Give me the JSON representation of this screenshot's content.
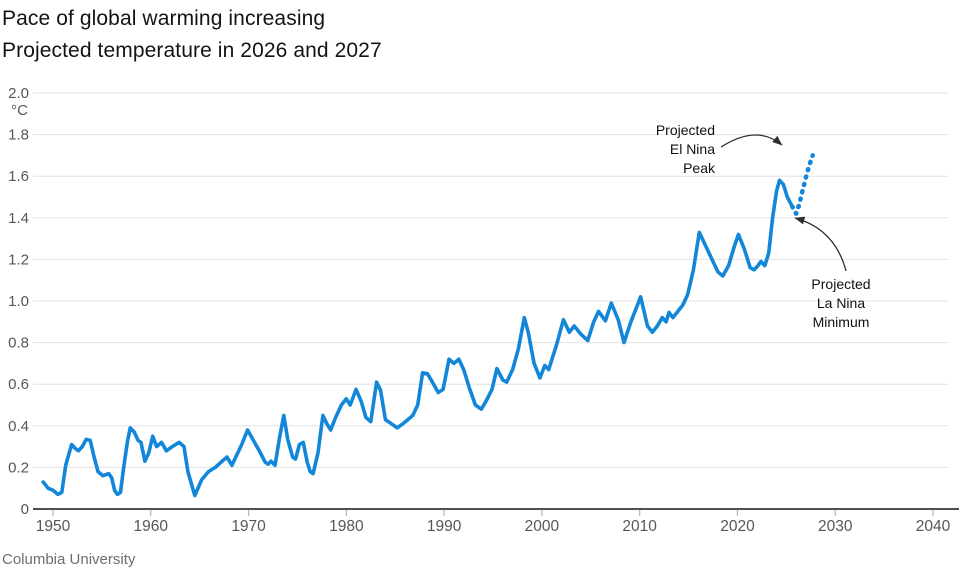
{
  "source": "Columbia University",
  "colors": {
    "line": "#1287d9",
    "grid": "#e3e3e3",
    "axis": "#4f4f4f",
    "tick": "#b3b3b3",
    "tick_label": "#575757",
    "annotation": "#111111",
    "arrow": "#2e2e2e"
  },
  "chart_data": {
    "type": "line",
    "title": "Pace of global warming increasing",
    "subtitle": "Projected temperature in 2026 and 2027",
    "unit_label": "°C",
    "xlim": [
      1948,
      2041
    ],
    "ylim": [
      0,
      2.0
    ],
    "grid": true,
    "legend": "none",
    "x_ticks": [
      1950,
      1960,
      1970,
      1980,
      1990,
      2000,
      2010,
      2020,
      2030,
      2040
    ],
    "y_ticks": [
      [
        "0",
        0
      ],
      [
        "0.2",
        0.2
      ],
      [
        "0.4",
        0.4
      ],
      [
        "0.6",
        0.6
      ],
      [
        "0.8",
        0.8
      ],
      [
        "1.0",
        1.0
      ],
      [
        "1.2",
        1.2
      ],
      [
        "1.4",
        1.4
      ],
      [
        "1.6",
        1.6
      ],
      [
        "1.8",
        1.8
      ],
      [
        "2.0",
        2.0
      ]
    ],
    "series": [
      {
        "name": "observed-temperature",
        "style": "solid",
        "points": [
          [
            1949.0,
            0.13
          ],
          [
            1949.5,
            0.1
          ],
          [
            1950.0,
            0.09
          ],
          [
            1950.5,
            0.07
          ],
          [
            1950.9,
            0.08
          ],
          [
            1951.3,
            0.21
          ],
          [
            1951.9,
            0.31
          ],
          [
            1952.3,
            0.29
          ],
          [
            1952.6,
            0.28
          ],
          [
            1953.0,
            0.3
          ],
          [
            1953.4,
            0.335
          ],
          [
            1953.8,
            0.33
          ],
          [
            1954.2,
            0.25
          ],
          [
            1954.6,
            0.18
          ],
          [
            1955.1,
            0.16
          ],
          [
            1955.7,
            0.17
          ],
          [
            1956.0,
            0.15
          ],
          [
            1956.3,
            0.09
          ],
          [
            1956.6,
            0.07
          ],
          [
            1956.9,
            0.08
          ],
          [
            1957.2,
            0.19
          ],
          [
            1957.6,
            0.32
          ],
          [
            1957.9,
            0.39
          ],
          [
            1958.3,
            0.37
          ],
          [
            1958.7,
            0.33
          ],
          [
            1959.0,
            0.32
          ],
          [
            1959.4,
            0.23
          ],
          [
            1959.8,
            0.27
          ],
          [
            1960.2,
            0.35
          ],
          [
            1960.6,
            0.3
          ],
          [
            1961.1,
            0.32
          ],
          [
            1961.6,
            0.28
          ],
          [
            1962.2,
            0.3
          ],
          [
            1962.9,
            0.32
          ],
          [
            1963.4,
            0.3
          ],
          [
            1963.8,
            0.18
          ],
          [
            1964.5,
            0.065
          ],
          [
            1965.2,
            0.14
          ],
          [
            1965.9,
            0.18
          ],
          [
            1966.6,
            0.2
          ],
          [
            1967.3,
            0.23
          ],
          [
            1967.8,
            0.25
          ],
          [
            1968.3,
            0.21
          ],
          [
            1968.8,
            0.26
          ],
          [
            1969.3,
            0.31
          ],
          [
            1969.9,
            0.38
          ],
          [
            1970.5,
            0.33
          ],
          [
            1971.1,
            0.28
          ],
          [
            1971.7,
            0.225
          ],
          [
            1972.0,
            0.215
          ],
          [
            1972.3,
            0.23
          ],
          [
            1972.7,
            0.21
          ],
          [
            1973.2,
            0.35
          ],
          [
            1973.6,
            0.45
          ],
          [
            1974.0,
            0.335
          ],
          [
            1974.5,
            0.25
          ],
          [
            1974.8,
            0.24
          ],
          [
            1975.2,
            0.31
          ],
          [
            1975.6,
            0.32
          ],
          [
            1976.0,
            0.225
          ],
          [
            1976.3,
            0.18
          ],
          [
            1976.6,
            0.17
          ],
          [
            1977.1,
            0.27
          ],
          [
            1977.6,
            0.45
          ],
          [
            1978.0,
            0.41
          ],
          [
            1978.4,
            0.38
          ],
          [
            1978.9,
            0.44
          ],
          [
            1979.5,
            0.5
          ],
          [
            1980.0,
            0.53
          ],
          [
            1980.4,
            0.5
          ],
          [
            1981.0,
            0.575
          ],
          [
            1981.5,
            0.52
          ],
          [
            1982.0,
            0.44
          ],
          [
            1982.5,
            0.42
          ],
          [
            1983.1,
            0.61
          ],
          [
            1983.5,
            0.57
          ],
          [
            1984.0,
            0.43
          ],
          [
            1984.6,
            0.41
          ],
          [
            1985.2,
            0.39
          ],
          [
            1985.8,
            0.41
          ],
          [
            1986.3,
            0.43
          ],
          [
            1986.8,
            0.45
          ],
          [
            1987.3,
            0.5
          ],
          [
            1987.8,
            0.655
          ],
          [
            1988.3,
            0.65
          ],
          [
            1988.8,
            0.61
          ],
          [
            1989.4,
            0.56
          ],
          [
            1989.9,
            0.575
          ],
          [
            1990.5,
            0.72
          ],
          [
            1991.0,
            0.7
          ],
          [
            1991.5,
            0.72
          ],
          [
            1992.0,
            0.67
          ],
          [
            1992.6,
            0.58
          ],
          [
            1993.2,
            0.5
          ],
          [
            1993.8,
            0.48
          ],
          [
            1994.3,
            0.52
          ],
          [
            1994.9,
            0.575
          ],
          [
            1995.4,
            0.675
          ],
          [
            1996.0,
            0.62
          ],
          [
            1996.4,
            0.61
          ],
          [
            1997.0,
            0.67
          ],
          [
            1997.6,
            0.77
          ],
          [
            1998.2,
            0.92
          ],
          [
            1998.6,
            0.85
          ],
          [
            1999.2,
            0.7
          ],
          [
            1999.8,
            0.63
          ],
          [
            2000.3,
            0.69
          ],
          [
            2000.7,
            0.67
          ],
          [
            2001.5,
            0.79
          ],
          [
            2002.2,
            0.91
          ],
          [
            2002.8,
            0.85
          ],
          [
            2003.3,
            0.88
          ],
          [
            2004.0,
            0.84
          ],
          [
            2004.7,
            0.81
          ],
          [
            2005.3,
            0.9
          ],
          [
            2005.8,
            0.95
          ],
          [
            2006.5,
            0.905
          ],
          [
            2007.1,
            0.99
          ],
          [
            2007.8,
            0.91
          ],
          [
            2008.4,
            0.8
          ],
          [
            2009.1,
            0.9
          ],
          [
            2009.6,
            0.96
          ],
          [
            2010.1,
            1.02
          ],
          [
            2010.8,
            0.88
          ],
          [
            2011.3,
            0.85
          ],
          [
            2011.8,
            0.88
          ],
          [
            2012.3,
            0.92
          ],
          [
            2012.7,
            0.9
          ],
          [
            2013.0,
            0.945
          ],
          [
            2013.4,
            0.92
          ],
          [
            2013.9,
            0.95
          ],
          [
            2014.4,
            0.98
          ],
          [
            2014.9,
            1.03
          ],
          [
            2015.5,
            1.15
          ],
          [
            2016.1,
            1.33
          ],
          [
            2016.6,
            1.28
          ],
          [
            2017.0,
            1.24
          ],
          [
            2017.4,
            1.2
          ],
          [
            2018.0,
            1.14
          ],
          [
            2018.5,
            1.12
          ],
          [
            2019.1,
            1.17
          ],
          [
            2019.6,
            1.25
          ],
          [
            2020.1,
            1.32
          ],
          [
            2020.7,
            1.25
          ],
          [
            2021.3,
            1.16
          ],
          [
            2021.7,
            1.15
          ],
          [
            2022.1,
            1.17
          ],
          [
            2022.4,
            1.19
          ],
          [
            2022.8,
            1.17
          ],
          [
            2023.2,
            1.23
          ],
          [
            2023.6,
            1.4
          ],
          [
            2024.0,
            1.53
          ],
          [
            2024.3,
            1.58
          ],
          [
            2024.7,
            1.56
          ],
          [
            2025.1,
            1.5
          ],
          [
            2025.6,
            1.455
          ]
        ]
      },
      {
        "name": "projected-temperature",
        "style": "dotted",
        "points": [
          [
            2025.6,
            1.455
          ],
          [
            2026.0,
            1.42
          ],
          [
            2026.3,
            1.46
          ],
          [
            2026.6,
            1.52
          ],
          [
            2026.95,
            1.585
          ],
          [
            2027.3,
            1.645
          ],
          [
            2027.7,
            1.7
          ]
        ]
      }
    ],
    "annotations": [
      {
        "label": "Projected\nEl Nina\nPeak",
        "target_year": 2027.2,
        "target_value": 1.73
      },
      {
        "label": "Projected\nLa Nina\nMinimum",
        "target_year": 2025.9,
        "target_value": 1.41
      }
    ]
  }
}
